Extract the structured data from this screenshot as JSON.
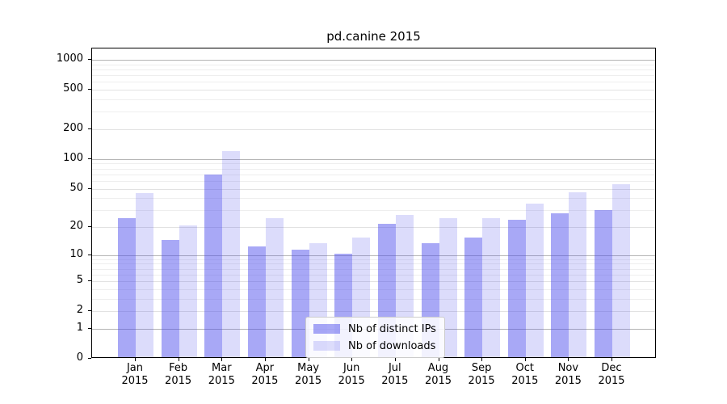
{
  "title": "pd.canine 2015",
  "colors": {
    "bar_distinct_ips": "rgba(70,70,235,0.47)",
    "bar_downloads": "rgba(70,70,235,0.19)",
    "grid_major": "#b5b5b5",
    "grid_labeled": "#e2e2e2",
    "grid_minor": "#eeeeee",
    "axis": "#000000"
  },
  "legend": {
    "items": [
      {
        "label": "Nb of distinct IPs",
        "color_key": "bar_distinct_ips"
      },
      {
        "label": "Nb of downloads",
        "color_key": "bar_downloads"
      }
    ]
  },
  "x_axis": {
    "year_label": "2015"
  },
  "chart_data": {
    "type": "bar",
    "title": "pd.canine 2015",
    "scale": "log1p",
    "grid": "on",
    "legend_position": "lower center",
    "categories": [
      "Jan",
      "Feb",
      "Mar",
      "Apr",
      "May",
      "Jun",
      "Jul",
      "Aug",
      "Sep",
      "Oct",
      "Nov",
      "Dec"
    ],
    "x_tick_labels": [
      "Jan\n2015",
      "Feb\n2015",
      "Mar\n2015",
      "Apr\n2015",
      "May\n2015",
      "Jun\n2015",
      "Jul\n2015",
      "Aug\n2015",
      "Sep\n2015",
      "Oct\n2015",
      "Nov\n2015",
      "Dec\n2015"
    ],
    "series": [
      {
        "name": "Nb of distinct IPs",
        "values": [
          24,
          14,
          67,
          12,
          11,
          10,
          21,
          13,
          15,
          23,
          27,
          29
        ]
      },
      {
        "name": "Nb of downloads",
        "values": [
          43,
          20,
          116,
          24,
          13,
          15,
          26,
          24,
          24,
          34,
          44,
          53
        ]
      }
    ],
    "y_ticks": [
      1000,
      500,
      200,
      100,
      50,
      20,
      10,
      5,
      2,
      1,
      0
    ],
    "y_minor_gridlines": [
      3,
      4,
      6,
      7,
      8,
      9,
      30,
      40,
      60,
      70,
      80,
      90,
      300,
      400,
      600,
      700,
      800,
      900
    ],
    "ylim": [
      0,
      1300
    ],
    "xlabel": "",
    "ylabel": ""
  }
}
